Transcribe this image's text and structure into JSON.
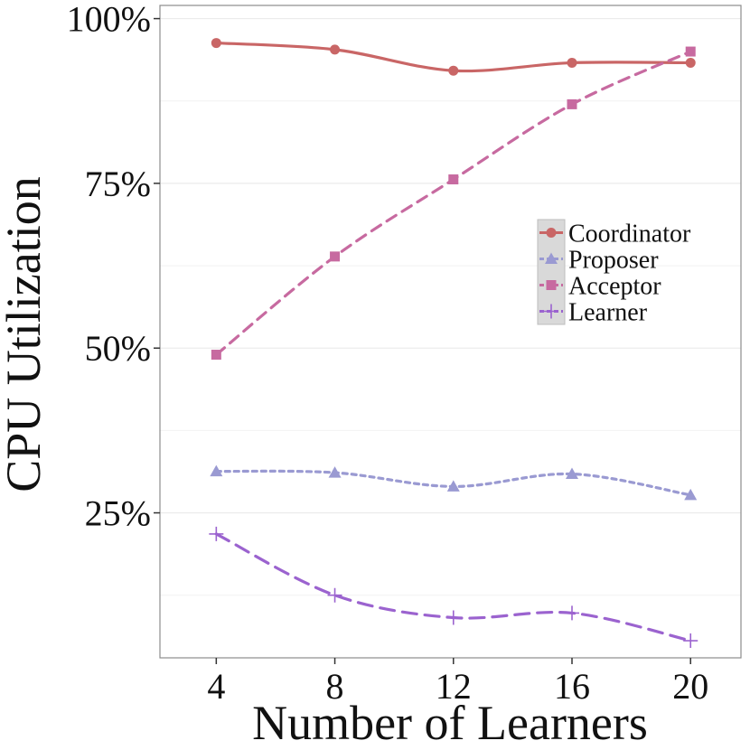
{
  "chart_data": {
    "type": "line",
    "title": "",
    "xlabel": "Number of Learners",
    "ylabel": "CPU Utilization",
    "x": [
      4,
      8,
      12,
      16,
      20
    ],
    "xlim": [
      2.1,
      21.7
    ],
    "ylim": [
      0.03,
      1.02
    ],
    "x_ticks": [
      4,
      8,
      12,
      16,
      20
    ],
    "x_tick_labels": [
      "4",
      "8",
      "12",
      "16",
      "20"
    ],
    "y_ticks": [
      0.25,
      0.5,
      0.75,
      1.0
    ],
    "y_tick_labels": [
      "25%",
      "50%",
      "75%",
      "100%"
    ],
    "grid": true,
    "legend_position": "right-middle",
    "series": [
      {
        "name": "Coordinator",
        "values": [
          0.963,
          0.953,
          0.921,
          0.933,
          0.933
        ],
        "color": "#c96666",
        "marker": "circle",
        "dash": "solid"
      },
      {
        "name": "Proposer",
        "values": [
          0.313,
          0.311,
          0.29,
          0.309,
          0.277
        ],
        "color": "#9a9ad2",
        "marker": "triangle",
        "dash": "dotted"
      },
      {
        "name": "Acceptor",
        "values": [
          0.49,
          0.639,
          0.756,
          0.87,
          0.95
        ],
        "color": "#c76aa0",
        "marker": "square",
        "dash": "dashed"
      },
      {
        "name": "Learner",
        "values": [
          0.218,
          0.125,
          0.091,
          0.098,
          0.056
        ],
        "color": "#9b63cf",
        "marker": "plus",
        "dash": "longdash"
      }
    ]
  }
}
